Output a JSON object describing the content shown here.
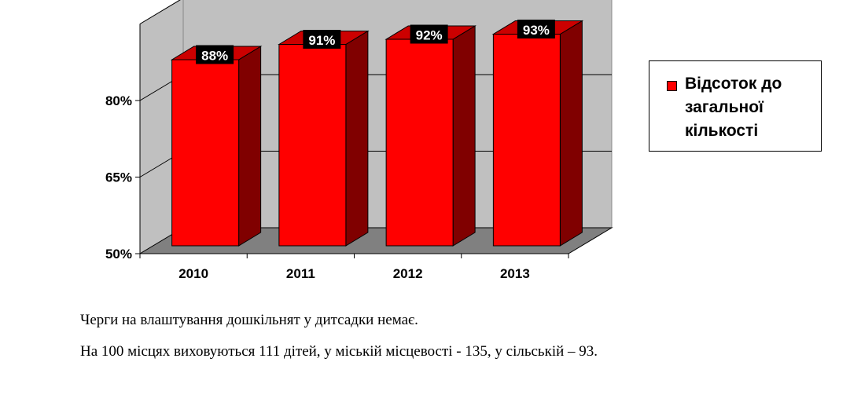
{
  "chart_data": {
    "type": "bar",
    "categories": [
      "2010",
      "2011",
      "2012",
      "2013"
    ],
    "values": [
      88,
      91,
      92,
      93
    ],
    "data_labels": [
      "88%",
      "91%",
      "92%",
      "93%"
    ],
    "ylim": [
      50,
      95
    ],
    "y_ticks": [
      {
        "value": 50,
        "label": "50%"
      },
      {
        "value": 65,
        "label": "65%"
      },
      {
        "value": 80,
        "label": "80%"
      }
    ],
    "series": [
      {
        "name": "Відсоток до загальної кількості",
        "values": [
          88,
          91,
          92,
          93
        ]
      }
    ],
    "legend_position": "right",
    "grid": true,
    "three_d": true,
    "colors": {
      "bar_front": "#ff0000",
      "bar_side": "#800000",
      "bar_top": "#cc0000",
      "wall": "#c0c0c0",
      "floor": "#808080"
    }
  },
  "text": {
    "p1": "Черги на влаштування дошкільнят у дитсадки немає.",
    "p2": "На 100 місцях виховуються  111 дітей, у міській місцевості - 135, у сільській – 93."
  }
}
